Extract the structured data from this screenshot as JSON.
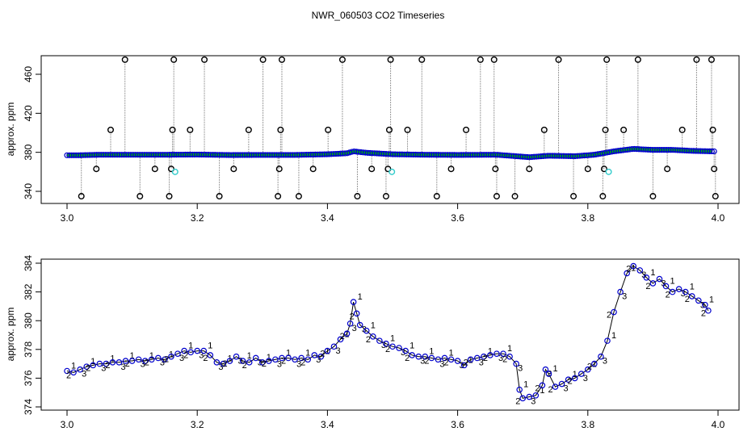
{
  "title": "NWR_060503  CO2 Timeseries",
  "colors": {
    "axis": "#000000",
    "line": "#000000",
    "stick": "#9a9a9a",
    "outlier_marker": "#000000",
    "flagged_marker": "#33cccc",
    "point_blue": "#0000cc",
    "label_1": "#ff0000",
    "label_2": "#00bb00",
    "label_3": "#0000cc"
  },
  "chart_data": [
    {
      "type": "line",
      "panel": "top",
      "ylabel": "approx. ppm",
      "xlabel": "",
      "xlim": [
        3.0,
        4.0
      ],
      "ylim": [
        330,
        478
      ],
      "xticks": [
        "3.0",
        "3.2",
        "3.4",
        "3.6",
        "3.8",
        "4.0"
      ],
      "yticks": [
        "340",
        "380",
        "420",
        "460"
      ],
      "baseline": [
        {
          "x": 3.0,
          "y": 377
        },
        {
          "x": 3.02,
          "y": 377
        },
        {
          "x": 3.05,
          "y": 377.5
        },
        {
          "x": 3.1,
          "y": 377.5
        },
        {
          "x": 3.15,
          "y": 377.5
        },
        {
          "x": 3.2,
          "y": 377.7
        },
        {
          "x": 3.25,
          "y": 377.2
        },
        {
          "x": 3.3,
          "y": 377.3
        },
        {
          "x": 3.35,
          "y": 377.3
        },
        {
          "x": 3.4,
          "y": 378
        },
        {
          "x": 3.43,
          "y": 379
        },
        {
          "x": 3.44,
          "y": 381
        },
        {
          "x": 3.46,
          "y": 379.5
        },
        {
          "x": 3.5,
          "y": 378
        },
        {
          "x": 3.55,
          "y": 377.5
        },
        {
          "x": 3.6,
          "y": 377.3
        },
        {
          "x": 3.66,
          "y": 377.5
        },
        {
          "x": 3.69,
          "y": 376
        },
        {
          "x": 3.71,
          "y": 375
        },
        {
          "x": 3.74,
          "y": 376.5
        },
        {
          "x": 3.78,
          "y": 376
        },
        {
          "x": 3.81,
          "y": 377.5
        },
        {
          "x": 3.84,
          "y": 381
        },
        {
          "x": 3.87,
          "y": 383.5
        },
        {
          "x": 3.9,
          "y": 382.5
        },
        {
          "x": 3.93,
          "y": 382.5
        },
        {
          "x": 3.96,
          "y": 381.5
        },
        {
          "x": 3.99,
          "y": 381
        }
      ],
      "outliers": [
        {
          "x": 3.022,
          "y": 335
        },
        {
          "x": 3.045,
          "y": 363
        },
        {
          "x": 3.067,
          "y": 403
        },
        {
          "x": 3.089,
          "y": 475
        },
        {
          "x": 3.112,
          "y": 335
        },
        {
          "x": 3.135,
          "y": 363
        },
        {
          "x": 3.157,
          "y": 335
        },
        {
          "x": 3.16,
          "y": 363
        },
        {
          "x": 3.162,
          "y": 403
        },
        {
          "x": 3.164,
          "y": 475
        },
        {
          "x": 3.189,
          "y": 403
        },
        {
          "x": 3.211,
          "y": 475
        },
        {
          "x": 3.234,
          "y": 335
        },
        {
          "x": 3.256,
          "y": 363
        },
        {
          "x": 3.279,
          "y": 403
        },
        {
          "x": 3.301,
          "y": 475
        },
        {
          "x": 3.324,
          "y": 335
        },
        {
          "x": 3.326,
          "y": 363
        },
        {
          "x": 3.328,
          "y": 403
        },
        {
          "x": 3.33,
          "y": 475
        },
        {
          "x": 3.356,
          "y": 335
        },
        {
          "x": 3.378,
          "y": 363
        },
        {
          "x": 3.401,
          "y": 403
        },
        {
          "x": 3.423,
          "y": 475
        },
        {
          "x": 3.446,
          "y": 335
        },
        {
          "x": 3.468,
          "y": 363
        },
        {
          "x": 3.49,
          "y": 335
        },
        {
          "x": 3.493,
          "y": 363
        },
        {
          "x": 3.495,
          "y": 403
        },
        {
          "x": 3.497,
          "y": 475
        },
        {
          "x": 3.523,
          "y": 403
        },
        {
          "x": 3.545,
          "y": 475
        },
        {
          "x": 3.568,
          "y": 335
        },
        {
          "x": 3.59,
          "y": 363
        },
        {
          "x": 3.613,
          "y": 403
        },
        {
          "x": 3.635,
          "y": 475
        },
        {
          "x": 3.656,
          "y": 475
        },
        {
          "x": 3.658,
          "y": 363
        },
        {
          "x": 3.66,
          "y": 335
        },
        {
          "x": 3.688,
          "y": 335
        },
        {
          "x": 3.71,
          "y": 363
        },
        {
          "x": 3.733,
          "y": 403
        },
        {
          "x": 3.755,
          "y": 475
        },
        {
          "x": 3.778,
          "y": 335
        },
        {
          "x": 3.8,
          "y": 363
        },
        {
          "x": 3.823,
          "y": 335
        },
        {
          "x": 3.825,
          "y": 363
        },
        {
          "x": 3.827,
          "y": 403
        },
        {
          "x": 3.829,
          "y": 475
        },
        {
          "x": 3.855,
          "y": 403
        },
        {
          "x": 3.877,
          "y": 475
        },
        {
          "x": 3.9,
          "y": 335
        },
        {
          "x": 3.922,
          "y": 363
        },
        {
          "x": 3.945,
          "y": 403
        },
        {
          "x": 3.967,
          "y": 475
        },
        {
          "x": 3.99,
          "y": 475
        },
        {
          "x": 3.992,
          "y": 403
        },
        {
          "x": 3.994,
          "y": 363
        },
        {
          "x": 3.996,
          "y": 335
        }
      ],
      "flagged": [
        {
          "x": 3.166,
          "y": 360
        },
        {
          "x": 3.499,
          "y": 360
        },
        {
          "x": 3.832,
          "y": 360
        }
      ]
    },
    {
      "type": "line",
      "panel": "bottom",
      "ylabel": "approx. ppm",
      "xlabel": "",
      "xlim": [
        3.0,
        4.0
      ],
      "ylim": [
        374,
        384.2
      ],
      "xticks": [
        "3.0",
        "3.2",
        "3.4",
        "3.6",
        "3.8",
        "4.0"
      ],
      "yticks": [
        "374",
        "376",
        "378",
        "380",
        "382",
        "384"
      ],
      "series_labels": [
        "1",
        "2",
        "3"
      ],
      "points": [
        {
          "x": 3.0,
          "y": 376.5
        },
        {
          "x": 3.01,
          "y": 376.4
        },
        {
          "x": 3.02,
          "y": 376.6
        },
        {
          "x": 3.03,
          "y": 376.8
        },
        {
          "x": 3.04,
          "y": 376.9
        },
        {
          "x": 3.05,
          "y": 377.0
        },
        {
          "x": 3.06,
          "y": 377.0
        },
        {
          "x": 3.07,
          "y": 377.1
        },
        {
          "x": 3.08,
          "y": 377.1
        },
        {
          "x": 3.09,
          "y": 377.2
        },
        {
          "x": 3.1,
          "y": 377.2
        },
        {
          "x": 3.11,
          "y": 377.3
        },
        {
          "x": 3.12,
          "y": 377.2
        },
        {
          "x": 3.13,
          "y": 377.3
        },
        {
          "x": 3.14,
          "y": 377.4
        },
        {
          "x": 3.15,
          "y": 377.3
        },
        {
          "x": 3.16,
          "y": 377.5
        },
        {
          "x": 3.17,
          "y": 377.7
        },
        {
          "x": 3.18,
          "y": 377.9
        },
        {
          "x": 3.19,
          "y": 377.8
        },
        {
          "x": 3.2,
          "y": 377.9
        },
        {
          "x": 3.21,
          "y": 377.9
        },
        {
          "x": 3.22,
          "y": 377.6
        },
        {
          "x": 3.23,
          "y": 377.1
        },
        {
          "x": 3.24,
          "y": 377.0
        },
        {
          "x": 3.25,
          "y": 377.2
        },
        {
          "x": 3.26,
          "y": 377.5
        },
        {
          "x": 3.27,
          "y": 377.2
        },
        {
          "x": 3.28,
          "y": 377.1
        },
        {
          "x": 3.29,
          "y": 377.4
        },
        {
          "x": 3.3,
          "y": 377.1
        },
        {
          "x": 3.31,
          "y": 377.2
        },
        {
          "x": 3.32,
          "y": 377.3
        },
        {
          "x": 3.33,
          "y": 377.4
        },
        {
          "x": 3.34,
          "y": 377.4
        },
        {
          "x": 3.35,
          "y": 377.3
        },
        {
          "x": 3.36,
          "y": 377.4
        },
        {
          "x": 3.37,
          "y": 377.3
        },
        {
          "x": 3.38,
          "y": 377.6
        },
        {
          "x": 3.39,
          "y": 377.5
        },
        {
          "x": 3.4,
          "y": 377.9
        },
        {
          "x": 3.41,
          "y": 378.2
        },
        {
          "x": 3.42,
          "y": 378.7
        },
        {
          "x": 3.43,
          "y": 379.1
        },
        {
          "x": 3.435,
          "y": 379.8
        },
        {
          "x": 3.44,
          "y": 381.3
        },
        {
          "x": 3.445,
          "y": 380.5
        },
        {
          "x": 3.45,
          "y": 379.7
        },
        {
          "x": 3.46,
          "y": 379.3
        },
        {
          "x": 3.47,
          "y": 378.9
        },
        {
          "x": 3.48,
          "y": 378.6
        },
        {
          "x": 3.49,
          "y": 378.4
        },
        {
          "x": 3.5,
          "y": 378.2
        },
        {
          "x": 3.51,
          "y": 378.1
        },
        {
          "x": 3.52,
          "y": 377.9
        },
        {
          "x": 3.53,
          "y": 377.6
        },
        {
          "x": 3.54,
          "y": 377.5
        },
        {
          "x": 3.55,
          "y": 377.5
        },
        {
          "x": 3.56,
          "y": 377.4
        },
        {
          "x": 3.57,
          "y": 377.3
        },
        {
          "x": 3.58,
          "y": 377.4
        },
        {
          "x": 3.59,
          "y": 377.3
        },
        {
          "x": 3.6,
          "y": 377.2
        },
        {
          "x": 3.61,
          "y": 376.9
        },
        {
          "x": 3.62,
          "y": 377.3
        },
        {
          "x": 3.63,
          "y": 377.4
        },
        {
          "x": 3.64,
          "y": 377.5
        },
        {
          "x": 3.65,
          "y": 377.6
        },
        {
          "x": 3.66,
          "y": 377.7
        },
        {
          "x": 3.67,
          "y": 377.7
        },
        {
          "x": 3.68,
          "y": 377.5
        },
        {
          "x": 3.69,
          "y": 377.0
        },
        {
          "x": 3.695,
          "y": 375.2
        },
        {
          "x": 3.7,
          "y": 374.6
        },
        {
          "x": 3.71,
          "y": 374.7
        },
        {
          "x": 3.72,
          "y": 374.8
        },
        {
          "x": 3.73,
          "y": 375.5
        },
        {
          "x": 3.735,
          "y": 376.6
        },
        {
          "x": 3.74,
          "y": 376.3
        },
        {
          "x": 3.75,
          "y": 375.4
        },
        {
          "x": 3.76,
          "y": 375.6
        },
        {
          "x": 3.77,
          "y": 375.9
        },
        {
          "x": 3.78,
          "y": 376.0
        },
        {
          "x": 3.79,
          "y": 376.3
        },
        {
          "x": 3.8,
          "y": 376.6
        },
        {
          "x": 3.81,
          "y": 377.0
        },
        {
          "x": 3.82,
          "y": 377.5
        },
        {
          "x": 3.83,
          "y": 378.6
        },
        {
          "x": 3.84,
          "y": 380.6
        },
        {
          "x": 3.85,
          "y": 382.0
        },
        {
          "x": 3.86,
          "y": 383.3
        },
        {
          "x": 3.87,
          "y": 383.8
        },
        {
          "x": 3.88,
          "y": 383.5
        },
        {
          "x": 3.89,
          "y": 383.0
        },
        {
          "x": 3.9,
          "y": 382.6
        },
        {
          "x": 3.91,
          "y": 382.9
        },
        {
          "x": 3.92,
          "y": 382.4
        },
        {
          "x": 3.93,
          "y": 382.0
        },
        {
          "x": 3.94,
          "y": 382.2
        },
        {
          "x": 3.95,
          "y": 382.0
        },
        {
          "x": 3.96,
          "y": 381.7
        },
        {
          "x": 3.97,
          "y": 381.4
        },
        {
          "x": 3.98,
          "y": 381.1
        },
        {
          "x": 3.985,
          "y": 380.7
        }
      ]
    }
  ]
}
